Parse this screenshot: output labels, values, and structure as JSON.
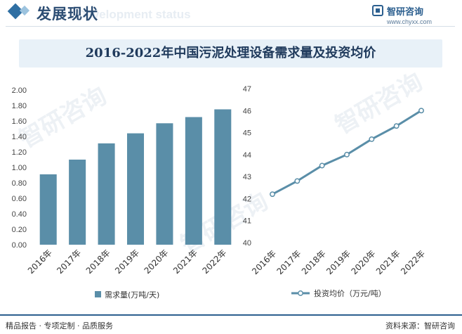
{
  "header": {
    "title": "发展现状",
    "subtitle_watermark": "Development status",
    "brand_name": "智研咨询",
    "brand_url": "www.chyxx.com"
  },
  "main_title": "2016-2022年中国污泥处理设备需求量及投资均价",
  "watermark_text": "智研咨询",
  "colors": {
    "bar": "#5a8ea8",
    "line": "#5a8ea8",
    "accent": "#2c5f8f"
  },
  "chart_data": [
    {
      "type": "bar",
      "categories": [
        "2016年",
        "2017年",
        "2018年",
        "2019年",
        "2020年",
        "2021年",
        "2022年"
      ],
      "series": [
        {
          "name": "需求量(万吨/天)",
          "values": [
            0.91,
            1.1,
            1.31,
            1.44,
            1.57,
            1.65,
            1.75
          ]
        }
      ],
      "ylim": [
        0,
        2.0
      ],
      "yticks": [
        "0.00",
        "0.20",
        "0.40",
        "0.60",
        "0.80",
        "1.00",
        "1.20",
        "1.40",
        "1.60",
        "1.80",
        "2.00"
      ],
      "legend_position": "bottom"
    },
    {
      "type": "line",
      "categories": [
        "2016年",
        "2017年",
        "2018年",
        "2019年",
        "2020年",
        "2021年",
        "2022年"
      ],
      "series": [
        {
          "name": "投资均价（万元/吨）",
          "values": [
            42.2,
            42.8,
            43.5,
            44.0,
            44.7,
            45.3,
            46.0
          ]
        }
      ],
      "ylim": [
        40,
        47
      ],
      "yticks": [
        "40",
        "41",
        "42",
        "43",
        "44",
        "45",
        "46",
        "47"
      ],
      "legend_position": "bottom"
    }
  ],
  "footer": {
    "left": "精品报告 · 专项定制 · 品质服务",
    "right": "资料来源：智研咨询"
  }
}
